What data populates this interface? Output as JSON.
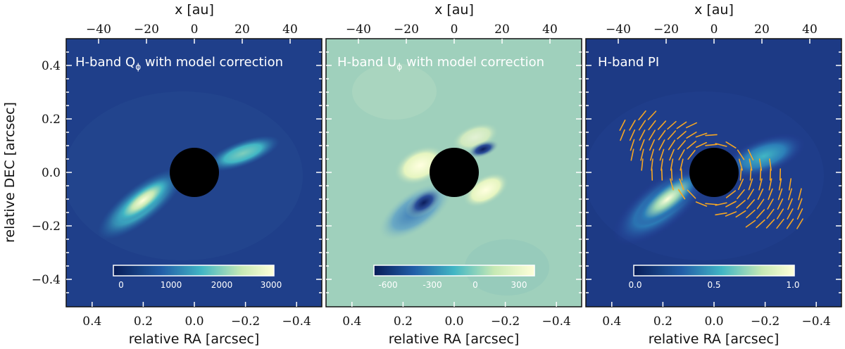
{
  "top_axis_label": "x [au]",
  "top_ticks": [
    "−40",
    "−20",
    "0",
    "20",
    "40"
  ],
  "top_tick_values": [
    -40,
    -20,
    0,
    20,
    40
  ],
  "bottom_axis_label": "relative RA [arcsec]",
  "bottom_ticks": [
    "−0.4",
    "−0.2",
    "0.0",
    "0.2",
    "0.4"
  ],
  "bottom_tick_values": [
    -0.4,
    -0.2,
    0.0,
    0.2,
    0.4
  ],
  "left_axis_label": "relative DEC [arcsec]",
  "left_ticks": [
    "0.4",
    "0.2",
    "0.0",
    "−0.2",
    "−0.4"
  ],
  "left_tick_values": [
    0.4,
    0.2,
    0.0,
    -0.2,
    -0.4
  ],
  "colors": {
    "frame": "#111111",
    "mask": "#000000",
    "vector": "#f5a623",
    "label_text": "#ffffff"
  },
  "chart_data": [
    {
      "type": "heatmap",
      "panel": "left",
      "title_prefix": "H-band Q",
      "title_sub": "ϕ",
      "title_suffix": " with model correction",
      "xlabel": "relative RA [arcsec]",
      "ylabel": "relative DEC [arcsec]",
      "xlim": [
        0.5,
        -0.5
      ],
      "ylim": [
        -0.5,
        0.5
      ],
      "x_top_label": "x [au]",
      "mask_radius_arcsec": 0.093,
      "colorbar": {
        "ticks": [
          "0",
          "1000",
          "2000",
          "3000"
        ],
        "tick_values": [
          0,
          1000,
          2000,
          3000
        ],
        "range": [
          -100,
          3100
        ]
      },
      "background": "#1f3f8a"
    },
    {
      "type": "heatmap",
      "panel": "middle",
      "title_prefix": "H-band U",
      "title_sub": "ϕ",
      "title_suffix": " with model correction",
      "xlabel": "relative RA [arcsec]",
      "xlim": [
        0.5,
        -0.5
      ],
      "ylim": [
        -0.5,
        0.5
      ],
      "x_top_label": "x [au]",
      "mask_radius_arcsec": 0.093,
      "colorbar": {
        "ticks": [
          "-600",
          "-300",
          "0",
          "300"
        ],
        "tick_values": [
          -600,
          -300,
          0,
          300
        ],
        "range": [
          -750,
          480
        ]
      },
      "background": "#9fd0bc"
    },
    {
      "type": "heatmap",
      "panel": "right",
      "title_prefix": "H-band PI",
      "title_sub": "",
      "title_suffix": "",
      "xlabel": "relative RA [arcsec]",
      "xlim": [
        0.5,
        -0.5
      ],
      "ylim": [
        -0.5,
        0.5
      ],
      "x_top_label": "x [au]",
      "mask_radius_arcsec": 0.093,
      "colorbar": {
        "ticks": [
          "0.0",
          "0.5",
          "1.0"
        ],
        "tick_values": [
          0.0,
          0.5,
          1.0
        ],
        "range": [
          -0.02,
          1.02
        ]
      },
      "background": "#1d3a85",
      "overlay": "polarization vectors (orange), azimuthal"
    }
  ]
}
